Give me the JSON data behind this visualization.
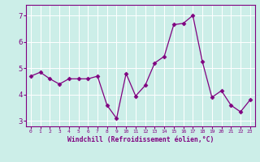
{
  "x": [
    0,
    1,
    2,
    3,
    4,
    5,
    6,
    7,
    8,
    9,
    10,
    11,
    12,
    13,
    14,
    15,
    16,
    17,
    18,
    19,
    20,
    21,
    22,
    23
  ],
  "y": [
    4.7,
    4.85,
    4.6,
    4.4,
    4.6,
    4.6,
    4.6,
    4.7,
    3.6,
    3.1,
    4.8,
    3.95,
    4.35,
    5.2,
    5.45,
    6.65,
    6.7,
    7.0,
    5.25,
    3.9,
    4.15,
    3.6,
    3.35,
    3.8
  ],
  "line_color": "#800080",
  "marker": "D",
  "marker_size": 2.5,
  "bg_color": "#cceee8",
  "grid_color": "#ffffff",
  "xlabel": "Windchill (Refroidissement éolien,°C)",
  "xlabel_color": "#800080",
  "tick_color": "#800080",
  "spine_color": "#800080",
  "ylim": [
    2.8,
    7.4
  ],
  "xlim": [
    -0.5,
    23.5
  ],
  "yticks": [
    3,
    4,
    5,
    6,
    7
  ],
  "xticks": [
    0,
    1,
    2,
    3,
    4,
    5,
    6,
    7,
    8,
    9,
    10,
    11,
    12,
    13,
    14,
    15,
    16,
    17,
    18,
    19,
    20,
    21,
    22,
    23
  ]
}
